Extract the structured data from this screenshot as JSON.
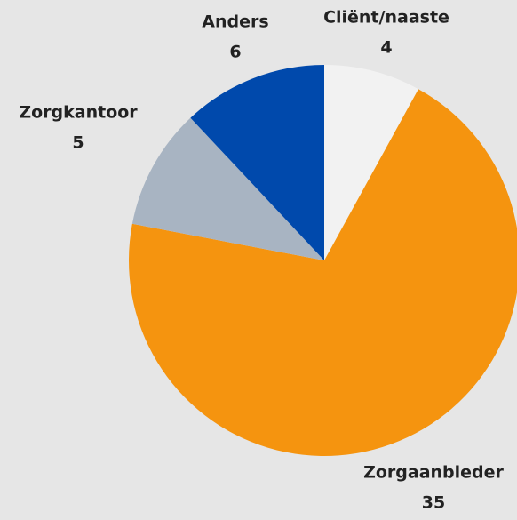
{
  "chart_data": {
    "type": "pie",
    "categories": [
      "Cliënt/naaste",
      "Zorgaanbieder",
      "Zorgkantoor",
      "Anders"
    ],
    "values": [
      4,
      35,
      5,
      6
    ],
    "colors": [
      "#f2f2f2",
      "#f5940f",
      "#a8b4c2",
      "#0049ac"
    ]
  }
}
